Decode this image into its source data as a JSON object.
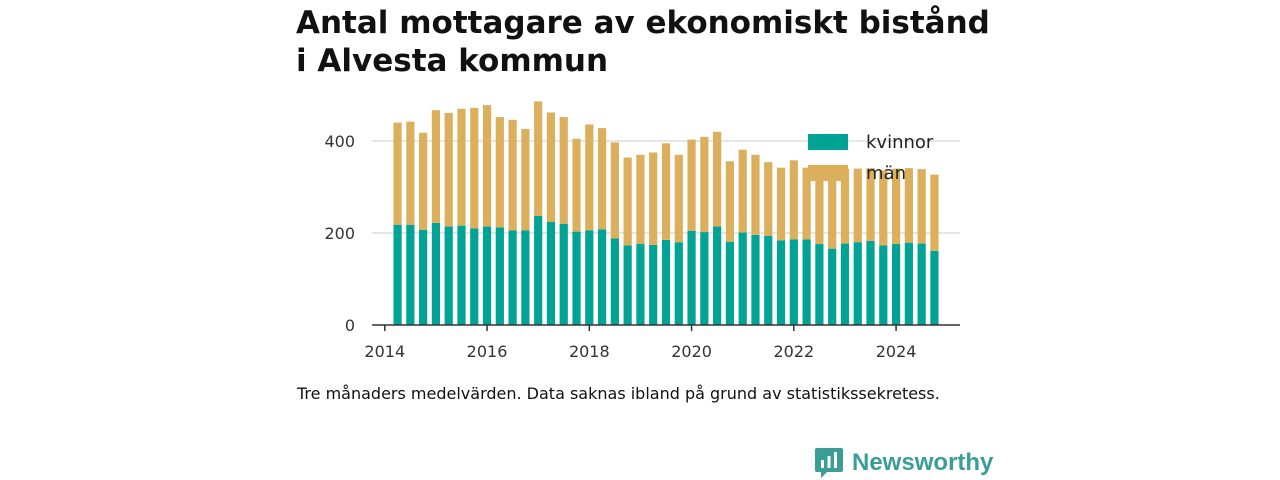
{
  "title_lines": [
    "Antal mottagare av ekonomiskt bistånd",
    "i Alvesta kommun"
  ],
  "caption": "Tre månaders medelvärden. Data saknas ibland på grund av statistikssekretess.",
  "brand": {
    "name": "Newsworthy",
    "icon": "newsworthy-logo-icon",
    "color": "#3a9e96"
  },
  "chart_data": {
    "type": "bar",
    "stacked": true,
    "x_unit": "quarter",
    "xlim": [
      2013.75,
      2025.25
    ],
    "ylim": [
      0,
      500
    ],
    "x_ticks": [
      2014,
      2016,
      2018,
      2020,
      2022,
      2024
    ],
    "y_ticks": [
      0,
      200,
      400
    ],
    "grid": "horizontal",
    "legend_position": "top-right",
    "series": [
      {
        "name": "kvinnor",
        "color": "#00a394",
        "values": [
          218,
          218,
          207,
          222,
          214,
          216,
          210,
          214,
          212,
          206,
          206,
          237,
          224,
          220,
          203,
          206,
          208,
          188,
          173,
          176,
          174,
          185,
          180,
          205,
          202,
          214,
          181,
          201,
          196,
          194,
          184,
          186,
          186,
          176,
          166,
          177,
          180,
          183,
          173,
          176,
          179,
          177,
          161
        ]
      },
      {
        "name": "män",
        "color": "#dbaf5c",
        "values": [
          222,
          224,
          211,
          245,
          247,
          254,
          262,
          264,
          240,
          240,
          220,
          249,
          238,
          232,
          202,
          230,
          220,
          209,
          191,
          194,
          201,
          210,
          190,
          198,
          207,
          206,
          175,
          180,
          174,
          160,
          158,
          172,
          156,
          164,
          162,
          162,
          160,
          158,
          163,
          164,
          162,
          162,
          166
        ]
      }
    ],
    "x": [
      2014.25,
      2014.5,
      2014.75,
      2015.0,
      2015.25,
      2015.5,
      2015.75,
      2016.0,
      2016.25,
      2016.5,
      2016.75,
      2017.0,
      2017.25,
      2017.5,
      2017.75,
      2018.0,
      2018.25,
      2018.5,
      2018.75,
      2019.0,
      2019.25,
      2019.5,
      2019.75,
      2020.0,
      2020.25,
      2020.5,
      2020.75,
      2021.0,
      2021.25,
      2021.5,
      2021.75,
      2022.0,
      2022.25,
      2022.5,
      2022.75,
      2023.0,
      2023.25,
      2023.5,
      2023.75,
      2024.0,
      2024.25,
      2024.5,
      2024.75
    ]
  }
}
